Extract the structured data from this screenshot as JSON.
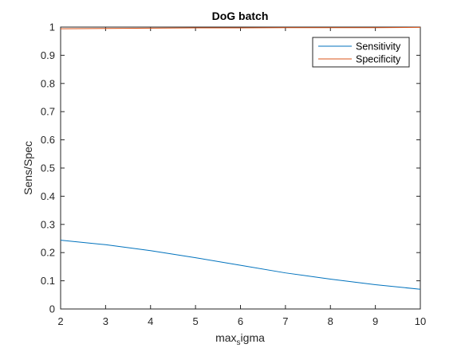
{
  "chart_data": {
    "type": "line",
    "title": "DoG batch",
    "xlabel": {
      "main": "max",
      "sub": "s",
      "rest": "igma"
    },
    "ylabel": "Sens/Spec",
    "xlim": [
      2,
      10
    ],
    "ylim": [
      0,
      1
    ],
    "xticks": [
      "2",
      "3",
      "4",
      "5",
      "6",
      "7",
      "8",
      "9",
      "10"
    ],
    "yticks": [
      "0",
      "0.1",
      "0.2",
      "0.3",
      "0.4",
      "0.5",
      "0.6",
      "0.7",
      "0.8",
      "0.9",
      "1"
    ],
    "x": [
      2,
      3,
      4,
      5,
      6,
      7,
      8,
      9,
      10
    ],
    "series": [
      {
        "name": "Sensitivity",
        "color": "#0072BD",
        "values": [
          0.244,
          0.228,
          0.207,
          0.182,
          0.155,
          0.128,
          0.106,
          0.086,
          0.07
        ]
      },
      {
        "name": "Specificity",
        "color": "#D95319",
        "values": [
          0.994,
          0.995,
          0.996,
          0.997,
          0.997,
          0.998,
          0.998,
          0.998,
          0.999
        ]
      }
    ],
    "grid": false,
    "legend": "top-right"
  }
}
